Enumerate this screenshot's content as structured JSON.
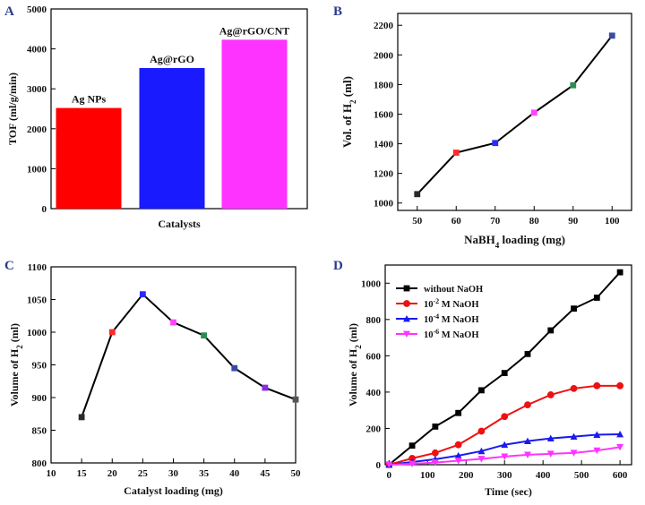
{
  "panels": [
    "A",
    "B",
    "C",
    "D"
  ],
  "chart_data": [
    {
      "id": "A",
      "type": "bar",
      "categories": [
        "Ag NPs",
        "Ag@rGO",
        "Ag@rGO/CNT"
      ],
      "values": [
        2520,
        3520,
        4230
      ],
      "colors": [
        "#ff0000",
        "#1a1aff",
        "#ff33ff"
      ],
      "title": "",
      "xlabel": "Catalysts",
      "ylabel": "TOF (ml/g/min)",
      "ylim": [
        0,
        5000
      ],
      "yticks": [
        0,
        1000,
        2000,
        3000,
        4000,
        5000
      ]
    },
    {
      "id": "B",
      "type": "line",
      "x": [
        50,
        60,
        70,
        80,
        90,
        100
      ],
      "y": [
        1060,
        1340,
        1405,
        1610,
        1795,
        2130
      ],
      "marker_colors": [
        "#2a2a2a",
        "#ff2a2a",
        "#2a2aff",
        "#ff44ff",
        "#2e8b57",
        "#3a4aa8"
      ],
      "xlabel_main": "NaBH",
      "xlabel_sub": "4",
      "xlabel_tail": " loading (mg)",
      "ylabel_main": "Vol. of H",
      "ylabel_sub": "2",
      "ylabel_tail": " (ml)",
      "xlim": [
        45,
        105
      ],
      "ylim": [
        950,
        2280
      ],
      "xticks": [
        50,
        60,
        70,
        80,
        90,
        100
      ],
      "yticks": [
        1000,
        1200,
        1400,
        1600,
        1800,
        2000,
        2200
      ]
    },
    {
      "id": "C",
      "type": "line",
      "x": [
        15,
        20,
        25,
        30,
        35,
        40,
        45,
        50
      ],
      "y": [
        870,
        1000,
        1058,
        1015,
        995,
        945,
        915,
        897
      ],
      "marker_colors": [
        "#2a2a2a",
        "#ff2a2a",
        "#2a2aff",
        "#ff44ff",
        "#2e8b57",
        "#3a4aa8",
        "#8a2be2",
        "#555555"
      ],
      "xlabel": "Catalyst loading (mg)",
      "ylabel_main": "Volume of H",
      "ylabel_sub": "2",
      "ylabel_tail": " (ml)",
      "xlim": [
        10,
        50
      ],
      "ylim": [
        800,
        1100
      ],
      "xticks": [
        10,
        15,
        20,
        25,
        30,
        35,
        40,
        45,
        50
      ],
      "yticks": [
        800,
        850,
        900,
        950,
        1000,
        1050,
        1100
      ]
    },
    {
      "id": "D",
      "type": "line",
      "x": [
        0,
        60,
        120,
        180,
        240,
        300,
        360,
        420,
        480,
        540,
        600
      ],
      "series": [
        {
          "name": "without NaOH",
          "exp": "",
          "color": "#000000",
          "marker": "square",
          "values": [
            0,
            105,
            210,
            285,
            410,
            505,
            610,
            740,
            860,
            920,
            1060
          ]
        },
        {
          "name": "M NaOH",
          "base": "10",
          "exp": "-2",
          "color": "#ee1111",
          "marker": "circle",
          "values": [
            0,
            35,
            65,
            110,
            185,
            265,
            330,
            385,
            420,
            435,
            435
          ]
        },
        {
          "name": "M NaOH",
          "base": "10",
          "exp": "-4",
          "color": "#1a1aee",
          "marker": "triangle",
          "values": [
            0,
            15,
            30,
            50,
            75,
            110,
            130,
            145,
            155,
            165,
            168
          ]
        },
        {
          "name": "M NaOH",
          "base": "10",
          "exp": "-6",
          "color": "#ff33ff",
          "marker": "triangle-down",
          "values": [
            0,
            5,
            12,
            22,
            32,
            45,
            55,
            60,
            65,
            78,
            97
          ]
        }
      ],
      "xlabel": "Time (sec)",
      "ylabel_main": "Volume of H",
      "ylabel_sub": "2",
      "ylabel_tail": " (ml)",
      "xlim": [
        -10,
        630
      ],
      "ylim": [
        0,
        1100
      ],
      "xticks": [
        0,
        100,
        200,
        300,
        400,
        500,
        600
      ],
      "yticks": [
        0,
        200,
        400,
        600,
        800,
        1000
      ],
      "legend": "top-left"
    }
  ]
}
